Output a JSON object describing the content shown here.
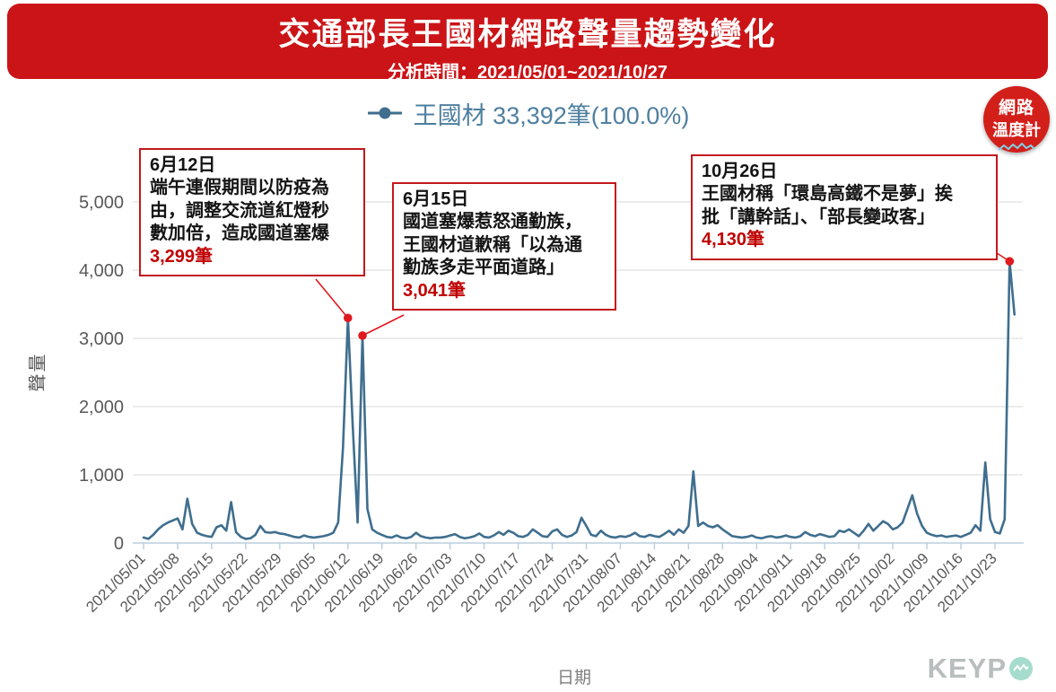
{
  "header": {
    "title": "交通部長王國材網路聲量趨勢變化",
    "subtitle": "分析時間：2021/05/01~2021/10/27"
  },
  "legend": {
    "label": "王國材 33,392筆(100.0%)"
  },
  "logo": {
    "line1": "網路",
    "line2": "溫度計"
  },
  "watermark": {
    "gray": "KEYP",
    "accent_circle": "wave-O"
  },
  "annotations": [
    {
      "date": "6月12日",
      "body": "端午連假期間以防疫為\n由，調整交流道紅燈秒\n數加倍，造成國道塞爆",
      "count": "3,299筆"
    },
    {
      "date": "6月15日",
      "body": "國道塞爆惹怒通勤族，\n王國材道歉稱「以為通\n勤族多走平面道路」",
      "count": "3,041筆"
    },
    {
      "date": "10月26日",
      "body": "王國材稱「環島高鐵不是夢」挨\n批「講幹話」、「部長變政客」",
      "count": "4,130筆"
    }
  ],
  "colors": {
    "header_red": "#cb1417",
    "line_blue": "#3f6e8e",
    "legend_text_blue": "#4e7f9f",
    "annotation_red": "#e0191e",
    "count_red": "#c00000",
    "gridline_gray": "#d9d9d9",
    "axis_blue": "#b9cedd",
    "tick_label_gray": "#595959"
  },
  "chart_data": {
    "type": "line",
    "title": "交通部長王國材網路聲量趨勢變化",
    "xlabel": "日期",
    "ylabel": "聲量",
    "ylim": [
      0,
      5000
    ],
    "ytick_step": 1000,
    "grid": "horizontal",
    "legend_position": "top-center",
    "start_date": "2021/05/01",
    "end_date": "2021/10/27",
    "x_tick_interval_days": 7,
    "x_tick_labels": [
      "2021/05/01",
      "2021/05/08",
      "2021/05/15",
      "2021/05/22",
      "2021/05/29",
      "2021/06/05",
      "2021/06/12",
      "2021/06/19",
      "2021/06/26",
      "2021/07/03",
      "2021/07/10",
      "2021/07/17",
      "2021/07/24",
      "2021/07/31",
      "2021/08/07",
      "2021/08/14",
      "2021/08/21",
      "2021/08/28",
      "2021/09/04",
      "2021/09/11",
      "2021/09/18",
      "2021/09/25",
      "2021/10/02",
      "2021/10/09",
      "2021/10/16",
      "2021/10/23"
    ],
    "series": [
      {
        "name": "王國材 33,392筆(100.0%)",
        "total": 33392,
        "share": "100.0%",
        "color": "#3f6e8e",
        "values": [
          80,
          60,
          120,
          200,
          260,
          300,
          330,
          360,
          200,
          650,
          280,
          150,
          120,
          100,
          90,
          230,
          260,
          180,
          600,
          160,
          90,
          60,
          70,
          120,
          250,
          160,
          150,
          160,
          140,
          130,
          110,
          90,
          80,
          110,
          90,
          80,
          90,
          100,
          120,
          150,
          300,
          1400,
          3299,
          1700,
          300,
          3041,
          500,
          200,
          150,
          120,
          90,
          80,
          110,
          80,
          70,
          90,
          150,
          100,
          80,
          70,
          80,
          80,
          90,
          110,
          130,
          90,
          70,
          80,
          100,
          140,
          90,
          80,
          110,
          160,
          120,
          180,
          150,
          100,
          90,
          120,
          200,
          150,
          100,
          90,
          170,
          200,
          120,
          90,
          110,
          160,
          370,
          250,
          120,
          100,
          180,
          120,
          90,
          80,
          100,
          90,
          110,
          150,
          100,
          90,
          120,
          100,
          90,
          130,
          180,
          120,
          200,
          150,
          250,
          1050,
          250,
          300,
          250,
          230,
          260,
          200,
          150,
          100,
          90,
          80,
          90,
          110,
          80,
          70,
          90,
          100,
          80,
          90,
          110,
          90,
          80,
          100,
          160,
          120,
          100,
          130,
          110,
          90,
          100,
          180,
          160,
          200,
          150,
          100,
          180,
          280,
          180,
          250,
          320,
          280,
          200,
          230,
          300,
          500,
          700,
          430,
          250,
          150,
          120,
          100,
          110,
          90,
          100,
          110,
          90,
          120,
          150,
          260,
          180,
          1180,
          350,
          160,
          140,
          350,
          4130,
          3350
        ]
      }
    ],
    "markers": [
      {
        "index": 42,
        "date": "2021/06/12",
        "value": 3299,
        "label": "3,299筆"
      },
      {
        "index": 45,
        "date": "2021/06/15",
        "value": 3041,
        "label": "3,041筆"
      },
      {
        "index": 178,
        "date": "2021/10/26",
        "value": 4130,
        "label": "4,130筆"
      }
    ]
  }
}
